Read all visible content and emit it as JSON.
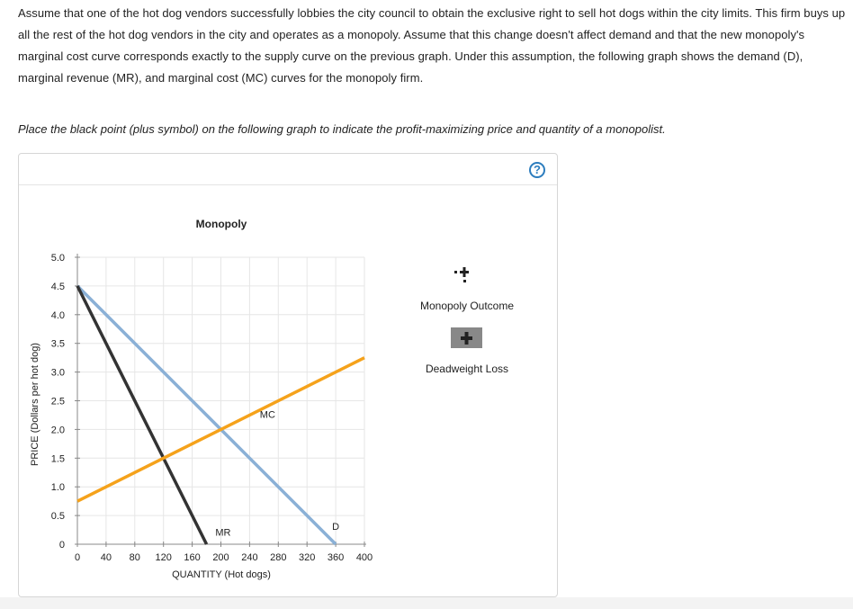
{
  "question": {
    "text": "Assume that one of the hot dog vendors successfully lobbies the city council to obtain the exclusive right to sell hot dogs within the city limits. This firm buys up all the rest of the hot dog vendors in the city and operates as a monopoly. Assume that this change doesn't affect demand and that the new monopoly's marginal cost curve corresponds exactly to the supply curve on the previous graph. Under this assumption, the following graph shows the demand (D), marginal revenue (MR), and marginal cost (MC) curves for the monopoly firm.",
    "instruction": "Place the black point (plus symbol) on the following graph to indicate the profit-maximizing price and quantity of a monopolist."
  },
  "help": {
    "symbol": "?"
  },
  "tools": [
    {
      "label": "Monopoly Outcome",
      "icon": "plus-marker-icon"
    },
    {
      "label": "Deadweight Loss",
      "icon": "plus-box-icon"
    }
  ],
  "chart_data": {
    "type": "line",
    "title": "Monopoly",
    "xlabel": "QUANTITY (Hot dogs)",
    "ylabel": "PRICE (Dollars per hot dog)",
    "xlim": [
      0,
      400
    ],
    "ylim": [
      0,
      5
    ],
    "x_ticks": [
      0,
      40,
      80,
      120,
      160,
      200,
      240,
      280,
      320,
      360,
      400
    ],
    "y_ticks": [
      0,
      0.5,
      1.0,
      1.5,
      2.0,
      2.5,
      3.0,
      3.5,
      4.0,
      4.5,
      5.0
    ],
    "x_tick_labels": [
      "0",
      "40",
      "80",
      "120",
      "160",
      "200",
      "240",
      "280",
      "320",
      "360",
      "400"
    ],
    "y_tick_labels": [
      "0",
      "0.5",
      "1.0",
      "1.5",
      "2.0",
      "2.5",
      "3.0",
      "3.5",
      "4.0",
      "4.5",
      "5.0"
    ],
    "grid": true,
    "series": [
      {
        "name": "D",
        "color": "#8ab0d6",
        "points": [
          [
            0,
            4.5
          ],
          [
            360,
            0
          ]
        ]
      },
      {
        "name": "MR",
        "color": "#333333",
        "points": [
          [
            0,
            4.5
          ],
          [
            180,
            0
          ]
        ]
      },
      {
        "name": "MC",
        "color": "#f5a21b",
        "points": [
          [
            0,
            0.75
          ],
          [
            400,
            3.25
          ]
        ]
      }
    ],
    "curve_labels": [
      {
        "text": "D",
        "x": 360,
        "y": 0.25
      },
      {
        "text": "MR",
        "x": 203,
        "y": 0.15
      },
      {
        "text": "MC",
        "x": 265,
        "y": 2.2
      }
    ]
  }
}
